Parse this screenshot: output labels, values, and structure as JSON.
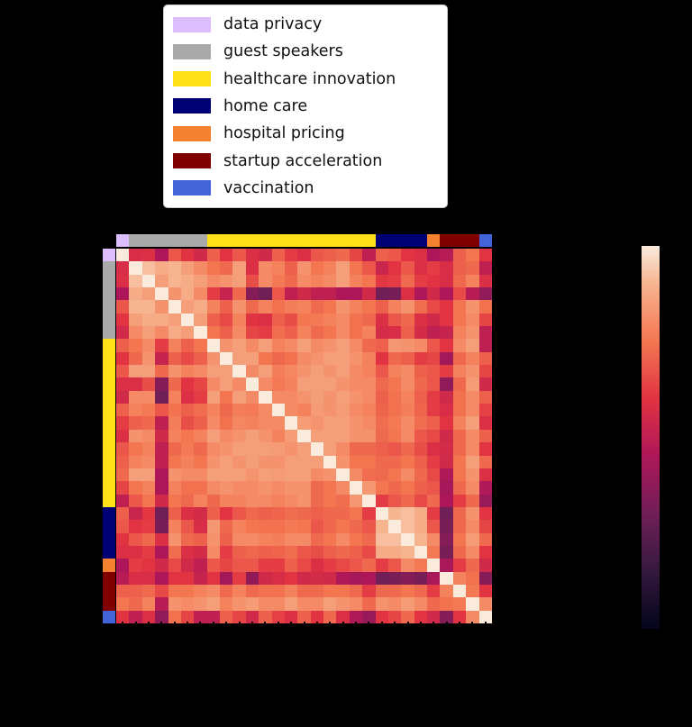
{
  "figure": {
    "background_color": "#000000",
    "legend": {
      "background_color": "#ffffff",
      "border_color": "#cccccc",
      "items": [
        {
          "label": "data privacy",
          "color": "#DCBEFF"
        },
        {
          "label": "guest speakers",
          "color": "#A9A9A9"
        },
        {
          "label": "healthcare innovation",
          "color": "#FFE119"
        },
        {
          "label": "home care",
          "color": "#000075"
        },
        {
          "label": "hospital pricing",
          "color": "#F58231"
        },
        {
          "label": "startup acceleration",
          "color": "#800000"
        },
        {
          "label": "vaccination",
          "color": "#4363D8"
        }
      ]
    }
  },
  "chart_data": {
    "type": "heatmap",
    "description": "Symmetric 29x29 topic-similarity (correlation) matrix with identical row and column ordering; rows/columns annotated by topic group color strips; rocket colormap; no visible axis tick labels or numeric colorbar labels (rendered black on black background).",
    "n": 29,
    "group_order": [
      "data privacy",
      "guest speakers",
      "healthcare innovation",
      "home care",
      "hospital pricing",
      "startup acceleration",
      "vaccination"
    ],
    "group_counts": [
      1,
      6,
      13,
      4,
      1,
      3,
      1
    ],
    "group_colors": [
      "#DCBEFF",
      "#A9A9A9",
      "#FFE119",
      "#000075",
      "#F58231",
      "#800000",
      "#4363D8"
    ],
    "value_range": [
      0.0,
      1.0
    ],
    "colormap": {
      "name": "rocket",
      "stops": [
        {
          "t": 0.0,
          "rgb": [
            3,
            5,
            26
          ]
        },
        {
          "t": 0.15,
          "rgb": [
            53,
            25,
            62
          ]
        },
        {
          "t": 0.3,
          "rgb": [
            112,
            31,
            87
          ]
        },
        {
          "t": 0.45,
          "rgb": [
            173,
            23,
            89
          ]
        },
        {
          "t": 0.6,
          "rgb": [
            225,
            51,
            66
          ]
        },
        {
          "t": 0.75,
          "rgb": [
            243,
            118,
            81
          ]
        },
        {
          "t": 0.9,
          "rgb": [
            246,
            180,
            143
          ]
        },
        {
          "t": 1.0,
          "rgb": [
            250,
            235,
            221
          ]
        }
      ],
      "colorbar_orientation": "vertical",
      "colorbar_high_at": "top"
    },
    "matrix": [
      [
        1.0,
        0.57,
        0.58,
        0.45,
        0.68,
        0.6,
        0.55,
        0.7,
        0.6,
        0.68,
        0.58,
        0.55,
        0.7,
        0.62,
        0.58,
        0.68,
        0.7,
        0.72,
        0.64,
        0.5,
        0.7,
        0.68,
        0.6,
        0.58,
        0.45,
        0.48,
        0.7,
        0.75,
        0.6
      ],
      [
        0.57,
        1.0,
        0.92,
        0.88,
        0.9,
        0.85,
        0.8,
        0.75,
        0.72,
        0.85,
        0.58,
        0.8,
        0.78,
        0.7,
        0.82,
        0.75,
        0.78,
        0.85,
        0.75,
        0.68,
        0.53,
        0.6,
        0.68,
        0.58,
        0.62,
        0.57,
        0.7,
        0.72,
        0.5
      ],
      [
        0.58,
        0.92,
        1.0,
        0.85,
        0.9,
        0.88,
        0.85,
        0.8,
        0.82,
        0.85,
        0.66,
        0.8,
        0.76,
        0.72,
        0.8,
        0.78,
        0.8,
        0.85,
        0.78,
        0.75,
        0.61,
        0.62,
        0.72,
        0.62,
        0.6,
        0.57,
        0.72,
        0.78,
        0.58
      ],
      [
        0.45,
        0.88,
        0.85,
        1.0,
        0.82,
        0.88,
        0.8,
        0.62,
        0.52,
        0.72,
        0.35,
        0.3,
        0.68,
        0.5,
        0.55,
        0.5,
        0.5,
        0.45,
        0.45,
        0.55,
        0.3,
        0.32,
        0.58,
        0.45,
        0.55,
        0.45,
        0.65,
        0.48,
        0.38
      ],
      [
        0.68,
        0.9,
        0.9,
        0.82,
        1.0,
        0.85,
        0.88,
        0.78,
        0.7,
        0.82,
        0.72,
        0.78,
        0.74,
        0.77,
        0.78,
        0.72,
        0.75,
        0.82,
        0.78,
        0.75,
        0.7,
        0.78,
        0.82,
        0.73,
        0.65,
        0.6,
        0.75,
        0.82,
        0.74
      ],
      [
        0.6,
        0.85,
        0.88,
        0.88,
        0.85,
        1.0,
        0.85,
        0.7,
        0.65,
        0.78,
        0.6,
        0.58,
        0.7,
        0.66,
        0.75,
        0.76,
        0.78,
        0.8,
        0.74,
        0.72,
        0.58,
        0.68,
        0.72,
        0.58,
        0.55,
        0.6,
        0.75,
        0.8,
        0.64
      ],
      [
        0.55,
        0.8,
        0.85,
        0.8,
        0.88,
        0.85,
        1.0,
        0.75,
        0.7,
        0.8,
        0.64,
        0.62,
        0.73,
        0.7,
        0.78,
        0.72,
        0.75,
        0.8,
        0.74,
        0.78,
        0.56,
        0.57,
        0.7,
        0.56,
        0.5,
        0.52,
        0.78,
        0.82,
        0.5
      ],
      [
        0.7,
        0.75,
        0.8,
        0.62,
        0.78,
        0.7,
        0.75,
        1.0,
        0.82,
        0.85,
        0.8,
        0.85,
        0.78,
        0.8,
        0.85,
        0.8,
        0.82,
        0.85,
        0.8,
        0.72,
        0.7,
        0.83,
        0.82,
        0.8,
        0.68,
        0.6,
        0.8,
        0.85,
        0.5
      ],
      [
        0.6,
        0.72,
        0.82,
        0.52,
        0.7,
        0.65,
        0.7,
        0.82,
        1.0,
        0.85,
        0.85,
        0.75,
        0.72,
        0.74,
        0.8,
        0.82,
        0.85,
        0.85,
        0.82,
        0.78,
        0.6,
        0.72,
        0.7,
        0.62,
        0.64,
        0.42,
        0.72,
        0.78,
        0.7
      ],
      [
        0.68,
        0.85,
        0.85,
        0.72,
        0.82,
        0.78,
        0.8,
        0.85,
        0.85,
        1.0,
        0.8,
        0.85,
        0.77,
        0.79,
        0.82,
        0.85,
        0.82,
        0.85,
        0.8,
        0.78,
        0.68,
        0.78,
        0.8,
        0.7,
        0.68,
        0.62,
        0.78,
        0.82,
        0.64
      ],
      [
        0.58,
        0.58,
        0.66,
        0.35,
        0.72,
        0.6,
        0.64,
        0.8,
        0.85,
        0.8,
        1.0,
        0.8,
        0.76,
        0.78,
        0.85,
        0.85,
        0.85,
        0.82,
        0.8,
        0.8,
        0.72,
        0.75,
        0.8,
        0.72,
        0.68,
        0.38,
        0.72,
        0.84,
        0.55
      ],
      [
        0.55,
        0.8,
        0.8,
        0.3,
        0.78,
        0.58,
        0.62,
        0.85,
        0.75,
        0.85,
        0.8,
        1.0,
        0.8,
        0.8,
        0.82,
        0.85,
        0.82,
        0.85,
        0.82,
        0.8,
        0.7,
        0.74,
        0.78,
        0.7,
        0.62,
        0.55,
        0.74,
        0.8,
        0.7
      ],
      [
        0.7,
        0.78,
        0.76,
        0.68,
        0.74,
        0.7,
        0.73,
        0.78,
        0.72,
        0.77,
        0.76,
        0.8,
        1.0,
        0.8,
        0.78,
        0.84,
        0.82,
        0.84,
        0.8,
        0.78,
        0.71,
        0.74,
        0.77,
        0.71,
        0.62,
        0.57,
        0.74,
        0.8,
        0.63
      ],
      [
        0.62,
        0.7,
        0.72,
        0.5,
        0.77,
        0.66,
        0.7,
        0.8,
        0.74,
        0.79,
        0.78,
        0.8,
        0.8,
        1.0,
        0.84,
        0.82,
        0.85,
        0.85,
        0.82,
        0.8,
        0.73,
        0.76,
        0.8,
        0.73,
        0.7,
        0.6,
        0.78,
        0.85,
        0.58
      ],
      [
        0.58,
        0.82,
        0.8,
        0.55,
        0.78,
        0.75,
        0.78,
        0.85,
        0.8,
        0.82,
        0.85,
        0.82,
        0.78,
        0.84,
        1.0,
        0.85,
        0.85,
        0.85,
        0.82,
        0.82,
        0.72,
        0.75,
        0.8,
        0.68,
        0.65,
        0.55,
        0.72,
        0.8,
        0.7
      ],
      [
        0.68,
        0.75,
        0.78,
        0.5,
        0.72,
        0.76,
        0.72,
        0.8,
        0.82,
        0.85,
        0.85,
        0.85,
        0.84,
        0.82,
        0.85,
        1.0,
        0.85,
        0.8,
        0.72,
        0.72,
        0.7,
        0.68,
        0.72,
        0.66,
        0.58,
        0.56,
        0.72,
        0.8,
        0.6
      ],
      [
        0.7,
        0.78,
        0.8,
        0.5,
        0.75,
        0.78,
        0.75,
        0.82,
        0.85,
        0.82,
        0.85,
        0.82,
        0.82,
        0.85,
        0.85,
        0.85,
        1.0,
        0.82,
        0.75,
        0.75,
        0.72,
        0.72,
        0.75,
        0.7,
        0.62,
        0.55,
        0.75,
        0.85,
        0.72
      ],
      [
        0.72,
        0.85,
        0.85,
        0.45,
        0.82,
        0.8,
        0.8,
        0.85,
        0.85,
        0.85,
        0.82,
        0.85,
        0.84,
        0.85,
        0.85,
        0.8,
        0.82,
        1.0,
        0.8,
        0.73,
        0.72,
        0.75,
        0.8,
        0.72,
        0.65,
        0.46,
        0.75,
        0.82,
        0.58
      ],
      [
        0.64,
        0.75,
        0.78,
        0.45,
        0.78,
        0.74,
        0.74,
        0.8,
        0.82,
        0.8,
        0.8,
        0.82,
        0.8,
        0.82,
        0.82,
        0.72,
        0.75,
        0.8,
        1.0,
        0.83,
        0.75,
        0.72,
        0.75,
        0.7,
        0.68,
        0.43,
        0.72,
        0.8,
        0.46
      ],
      [
        0.5,
        0.68,
        0.75,
        0.55,
        0.75,
        0.72,
        0.78,
        0.72,
        0.78,
        0.78,
        0.8,
        0.8,
        0.78,
        0.8,
        0.82,
        0.72,
        0.75,
        0.73,
        0.83,
        1.0,
        0.62,
        0.68,
        0.72,
        0.65,
        0.72,
        0.45,
        0.62,
        0.72,
        0.4
      ],
      [
        0.7,
        0.53,
        0.61,
        0.3,
        0.7,
        0.58,
        0.56,
        0.7,
        0.6,
        0.68,
        0.72,
        0.7,
        0.71,
        0.73,
        0.72,
        0.7,
        0.72,
        0.72,
        0.75,
        0.62,
        1.0,
        0.9,
        0.92,
        0.88,
        0.62,
        0.3,
        0.72,
        0.82,
        0.6
      ],
      [
        0.68,
        0.6,
        0.62,
        0.32,
        0.78,
        0.68,
        0.57,
        0.83,
        0.72,
        0.78,
        0.75,
        0.74,
        0.74,
        0.76,
        0.75,
        0.68,
        0.72,
        0.75,
        0.72,
        0.68,
        0.9,
        1.0,
        0.92,
        0.88,
        0.68,
        0.32,
        0.72,
        0.8,
        0.64
      ],
      [
        0.6,
        0.68,
        0.72,
        0.58,
        0.82,
        0.72,
        0.7,
        0.82,
        0.7,
        0.8,
        0.8,
        0.78,
        0.77,
        0.8,
        0.8,
        0.72,
        0.75,
        0.8,
        0.75,
        0.72,
        0.92,
        0.92,
        1.0,
        0.9,
        0.8,
        0.35,
        0.75,
        0.84,
        0.72
      ],
      [
        0.58,
        0.58,
        0.62,
        0.45,
        0.73,
        0.58,
        0.56,
        0.8,
        0.62,
        0.7,
        0.72,
        0.7,
        0.71,
        0.73,
        0.68,
        0.66,
        0.7,
        0.72,
        0.7,
        0.65,
        0.88,
        0.88,
        0.9,
        1.0,
        0.76,
        0.32,
        0.72,
        0.8,
        0.6
      ],
      [
        0.45,
        0.62,
        0.6,
        0.55,
        0.65,
        0.55,
        0.5,
        0.68,
        0.64,
        0.68,
        0.68,
        0.62,
        0.62,
        0.7,
        0.65,
        0.58,
        0.62,
        0.65,
        0.68,
        0.72,
        0.62,
        0.68,
        0.8,
        0.76,
        1.0,
        0.44,
        0.62,
        0.72,
        0.55
      ],
      [
        0.48,
        0.57,
        0.57,
        0.45,
        0.6,
        0.6,
        0.52,
        0.6,
        0.42,
        0.62,
        0.38,
        0.55,
        0.57,
        0.6,
        0.55,
        0.56,
        0.55,
        0.46,
        0.43,
        0.45,
        0.3,
        0.32,
        0.35,
        0.32,
        0.44,
        1.0,
        0.78,
        0.74,
        0.35
      ],
      [
        0.7,
        0.7,
        0.72,
        0.65,
        0.75,
        0.75,
        0.78,
        0.8,
        0.72,
        0.78,
        0.72,
        0.74,
        0.74,
        0.78,
        0.72,
        0.72,
        0.75,
        0.75,
        0.72,
        0.62,
        0.72,
        0.72,
        0.75,
        0.72,
        0.62,
        0.78,
        1.0,
        0.76,
        0.6
      ],
      [
        0.75,
        0.72,
        0.78,
        0.48,
        0.82,
        0.8,
        0.82,
        0.85,
        0.78,
        0.82,
        0.84,
        0.8,
        0.8,
        0.85,
        0.8,
        0.8,
        0.85,
        0.82,
        0.8,
        0.72,
        0.82,
        0.8,
        0.84,
        0.8,
        0.72,
        0.74,
        0.76,
        1.0,
        0.8
      ],
      [
        0.6,
        0.5,
        0.58,
        0.38,
        0.74,
        0.64,
        0.5,
        0.5,
        0.7,
        0.64,
        0.55,
        0.7,
        0.63,
        0.58,
        0.7,
        0.6,
        0.72,
        0.58,
        0.46,
        0.4,
        0.6,
        0.64,
        0.72,
        0.6,
        0.55,
        0.35,
        0.6,
        0.8,
        1.0
      ]
    ]
  }
}
